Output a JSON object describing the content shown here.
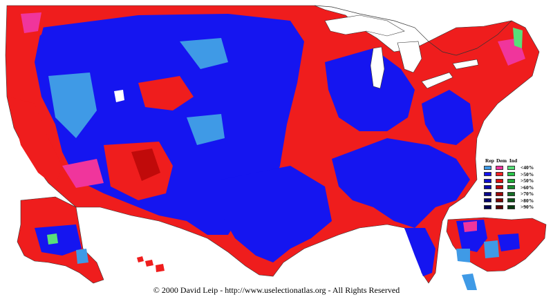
{
  "map": {
    "copyright": "© 2000 David Leip - http://www.uselectionatlas.org - All Rights Reserved"
  },
  "legend": {
    "headers": [
      "Rep",
      "Dem",
      "Ind"
    ],
    "rows": [
      {
        "label": "<40%",
        "rep": "#3f9ae6",
        "dem": "#f0359c",
        "ind": "#58e07a"
      },
      {
        "label": ">50%",
        "rep": "#1515f0",
        "dem": "#f01f1f",
        "ind": "#28c448"
      },
      {
        "label": ">50%",
        "rep": "#0e0ecc",
        "dem": "#d80f0f",
        "ind": "#20a838"
      },
      {
        "label": ">60%",
        "rep": "#0b0baa",
        "dem": "#b80a0a",
        "ind": "#1a8a2e"
      },
      {
        "label": ">70%",
        "rep": "#08088c",
        "dem": "#980707",
        "ind": "#146c24"
      },
      {
        "label": ">80%",
        "rep": "#05056c",
        "dem": "#760505",
        "ind": "#0e521a"
      },
      {
        "label": ">90%",
        "rep": "#030350",
        "dem": "#560303",
        "ind": "#093a12"
      }
    ]
  },
  "colors": {
    "rep_main": "#1515f0",
    "rep_light": "#3f9ae6",
    "dem_main": "#ef1d1d",
    "dem_dark": "#c00a0a",
    "dem_light": "#f0359c",
    "ind": "#58e07a",
    "water": "#ffffff",
    "border": "#555555"
  }
}
